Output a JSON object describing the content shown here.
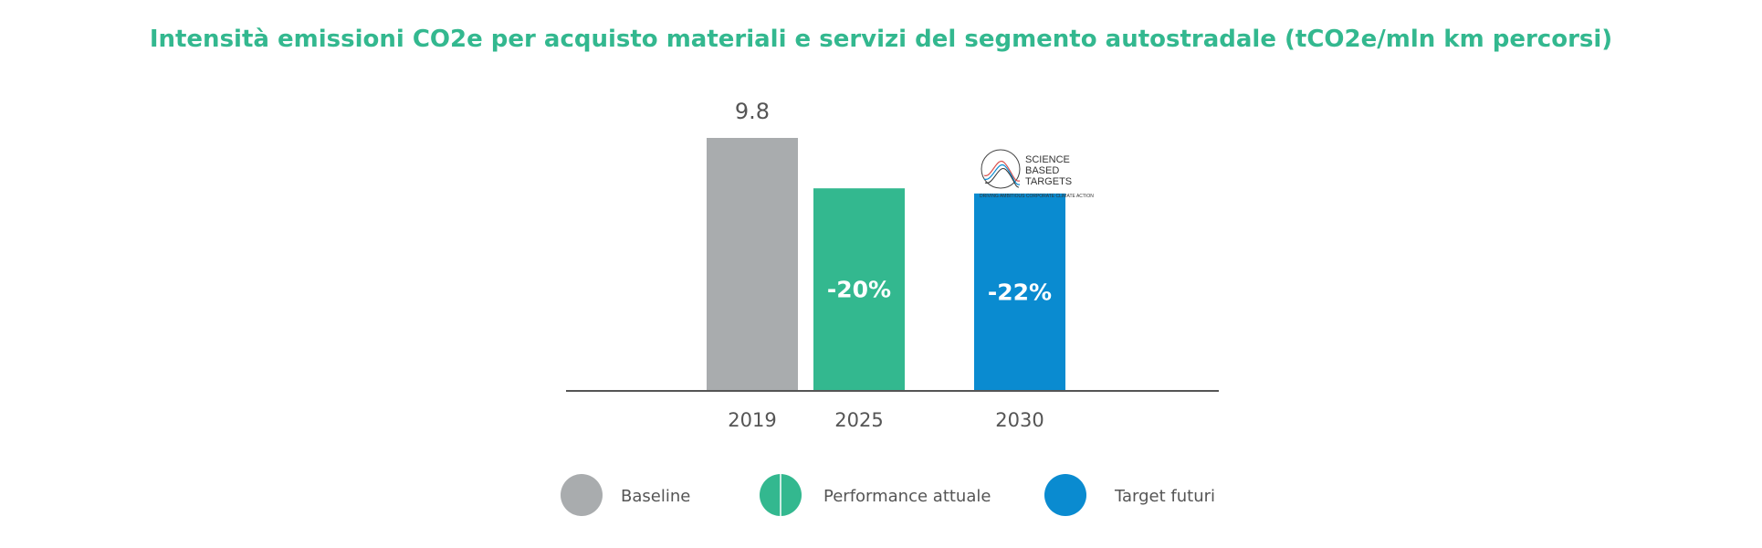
{
  "chart_data": {
    "type": "bar",
    "title": "Intensità emissioni CO2e per acquisto materiali e servizi del segmento autostradale (tCO2e/mln km percorsi)",
    "categories": [
      "2019",
      "2025",
      "2030"
    ],
    "values": [
      9.8,
      7.84,
      7.64
    ],
    "value_labels": [
      "9.8",
      "-20%",
      "-22%"
    ],
    "series_of_bar": [
      "Baseline",
      "Performance attuale",
      "Target futuri"
    ],
    "ylim": [
      0,
      9.8
    ],
    "xlabel": "",
    "ylabel": "",
    "grid": false,
    "legend": {
      "position": "bottom",
      "entries": [
        {
          "label": "Baseline",
          "color": "#a9acae"
        },
        {
          "label": "Performance attuale",
          "color": "#33b88f"
        },
        {
          "label": "Target futuri",
          "color": "#0a8bd0"
        }
      ]
    },
    "annotation": {
      "category": "2030",
      "logo_line1": "SCIENCE",
      "logo_line2": "BASED",
      "logo_line3": "TARGETS",
      "logo_tagline": "DRIVING AMBITIOUS CORPORATE CLIMATE ACTION"
    }
  },
  "colors": {
    "title": "#33b88f",
    "axis": "#555555",
    "text": "#555555"
  }
}
